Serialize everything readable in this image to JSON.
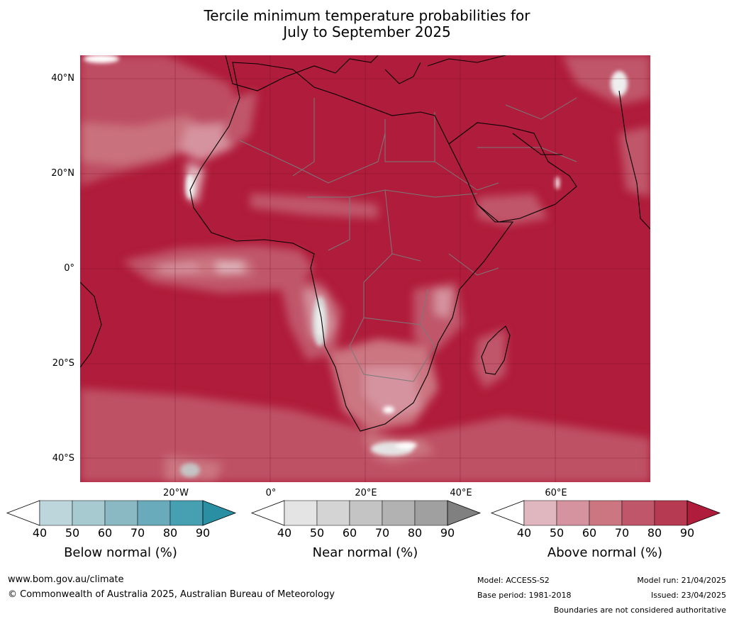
{
  "title": {
    "line1": "Tercile minimum temperature probabilities for",
    "line2": "July to September 2025"
  },
  "map": {
    "latitude_labels": [
      "40°N",
      "20°N",
      "0°",
      "20°S",
      "40°S"
    ],
    "longitude_labels": [
      "20°W",
      "0°",
      "20°E",
      "40°E",
      "60°E"
    ],
    "dominant_category": "Above normal",
    "dominant_range": "90+"
  },
  "colorbars": [
    {
      "title": "Below normal (%)",
      "ticks": [
        "40",
        "50",
        "60",
        "70",
        "80",
        "90"
      ],
      "colors": [
        "#ffffff",
        "#bdd6dc",
        "#a7c9d0",
        "#8ab8c3",
        "#6aabbb",
        "#47a0b2",
        "#2a8fa3"
      ]
    },
    {
      "title": "Near normal (%)",
      "ticks": [
        "40",
        "50",
        "60",
        "70",
        "80",
        "90"
      ],
      "colors": [
        "#ffffff",
        "#e4e4e4",
        "#d4d4d4",
        "#c4c4c4",
        "#b2b2b2",
        "#a0a0a0",
        "#808080"
      ]
    },
    {
      "title": "Above normal (%)",
      "ticks": [
        "40",
        "50",
        "60",
        "70",
        "80",
        "90"
      ],
      "colors": [
        "#ffffff",
        "#e1b7bf",
        "#d5939f",
        "#cb7681",
        "#c0566a",
        "#b53a52",
        "#b01c3b"
      ]
    }
  ],
  "footer": {
    "website": "www.bom.gov.au/climate",
    "copyright": "© Commonwealth of Australia 2025, Australian Bureau of Meteorology",
    "model": "Model: ACCESS-S2",
    "base_period": "Base period: 1981-2018",
    "model_run": "Model run: 21/04/2025",
    "issued": "Issued: 23/04/2025",
    "disclaimer": "Boundaries are not considered authoritative"
  }
}
